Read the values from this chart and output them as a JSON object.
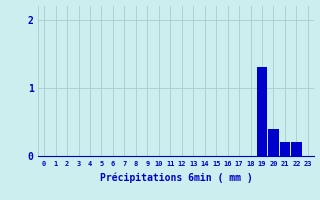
{
  "values": [
    0,
    0,
    0,
    0,
    0,
    0,
    0,
    0,
    0,
    0,
    0,
    0,
    0,
    0,
    0,
    0,
    0,
    0,
    0,
    1.3,
    0.4,
    0.2,
    0.2,
    0
  ],
  "bar_color": "#0000cc",
  "background_color": "#cceeee",
  "grid_color": "#aacccc",
  "xlabel": "Précipitations 6min ( mm )",
  "xlabel_color": "#0000cc",
  "tick_color": "#0000cc",
  "ylim": [
    0,
    2.2
  ],
  "yticks": [
    0,
    1,
    2
  ],
  "num_bars": 24,
  "figsize": [
    3.2,
    2.0
  ],
  "dpi": 100
}
